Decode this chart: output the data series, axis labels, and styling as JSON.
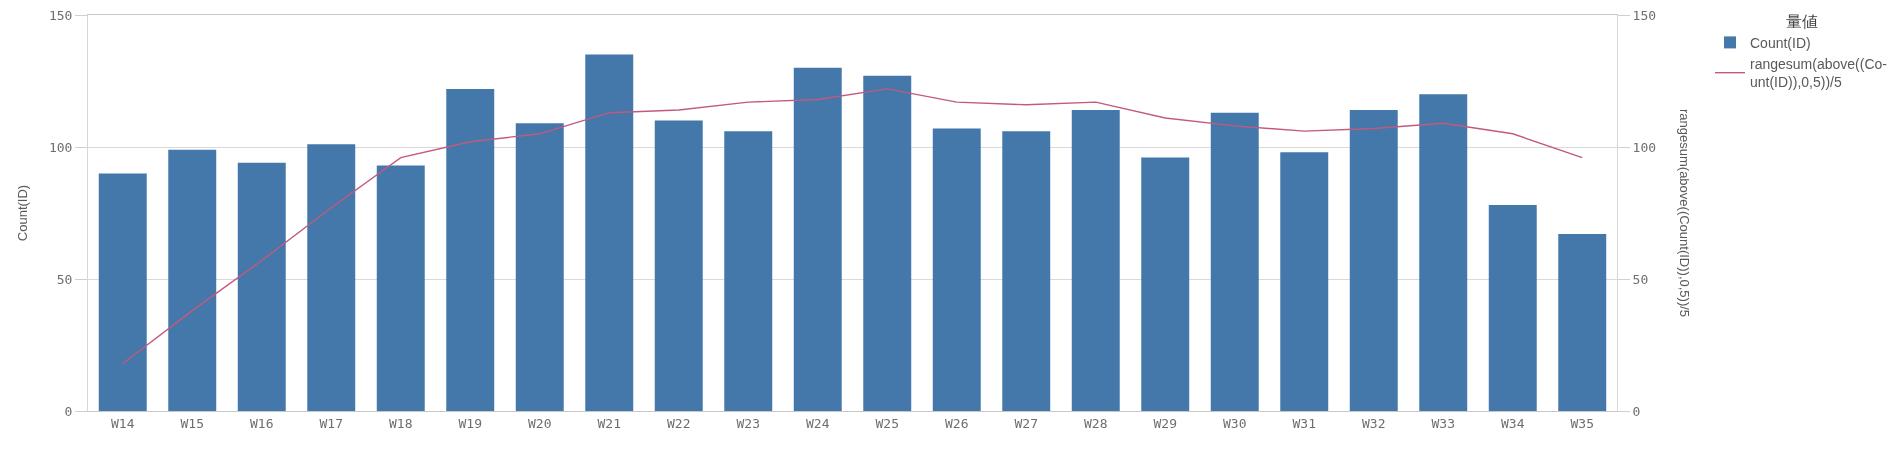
{
  "chart_data": {
    "type": "bar",
    "categories": [
      "W14",
      "W15",
      "W16",
      "W17",
      "W18",
      "W19",
      "W20",
      "W21",
      "W22",
      "W23",
      "W24",
      "W25",
      "W26",
      "W27",
      "W28",
      "W29",
      "W30",
      "W31",
      "W32",
      "W33",
      "W34",
      "W35"
    ],
    "series": [
      {
        "name": "Count(ID)",
        "color": "#4477aa",
        "values": [
          90,
          99,
          94,
          101,
          93,
          122,
          109,
          135,
          110,
          106,
          130,
          127,
          107,
          106,
          114,
          96,
          113,
          98,
          114,
          120,
          78,
          67
        ]
      },
      {
        "name": "rangesum(above((Co-unt(ID)),0,5))/5",
        "type": "line",
        "axis": "y2",
        "color": "#c25a7c",
        "values": [
          18,
          38,
          57,
          77,
          96,
          102,
          105,
          113,
          114,
          117,
          118,
          122,
          117,
          116,
          117,
          111,
          108,
          106,
          107,
          109,
          105,
          96
        ]
      }
    ],
    "ylabel": "Count(ID)",
    "y2label": "rangesum(above((Count(ID)),0,5))/5",
    "legend_title": "量値",
    "ylim": [
      0,
      150
    ],
    "yticks": [
      0,
      50,
      100,
      150
    ],
    "y2lim": [
      0,
      150
    ],
    "y2ticks": [
      0,
      50,
      100,
      150
    ],
    "grid": "y",
    "legend": "top right"
  }
}
